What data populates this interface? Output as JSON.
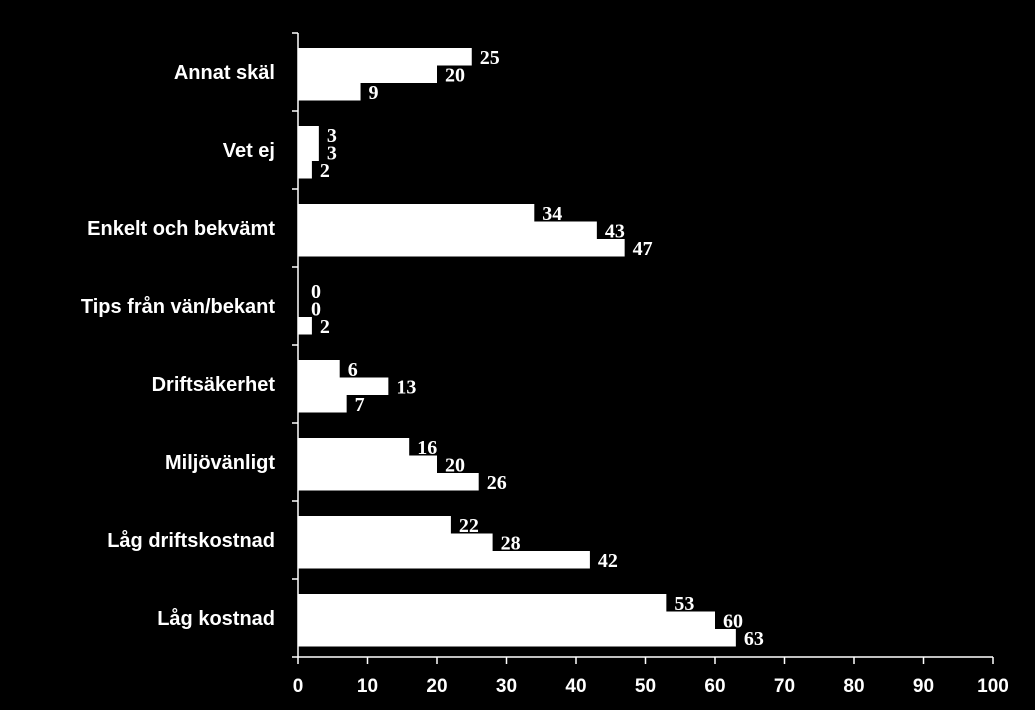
{
  "chart_data": {
    "type": "bar",
    "orientation": "horizontal",
    "categories": [
      "Annat skäl",
      "Vet ej",
      "Enkelt och bekvämt",
      "Tips från vän/bekant",
      "Driftsäkerhet",
      "Miljövänligt",
      "Låg driftskostnad",
      "Låg kostnad"
    ],
    "series": [
      {
        "values": [
          25,
          3,
          34,
          0,
          6,
          16,
          22,
          53
        ]
      },
      {
        "values": [
          20,
          3,
          43,
          0,
          13,
          20,
          28,
          60
        ]
      },
      {
        "values": [
          9,
          2,
          47,
          2,
          7,
          26,
          42,
          63
        ]
      }
    ],
    "xlim": [
      0,
      100
    ],
    "xticks": [
      "0",
      "10",
      "20",
      "30",
      "40",
      "50",
      "60",
      "70",
      "80",
      "90",
      "100"
    ],
    "title": "",
    "xlabel": "",
    "ylabel": "",
    "grid": false,
    "legend": "none",
    "colors": {
      "background": "#000000",
      "bar": "#ffffff",
      "text": "#ffffff",
      "axis": "#ffffff"
    }
  }
}
